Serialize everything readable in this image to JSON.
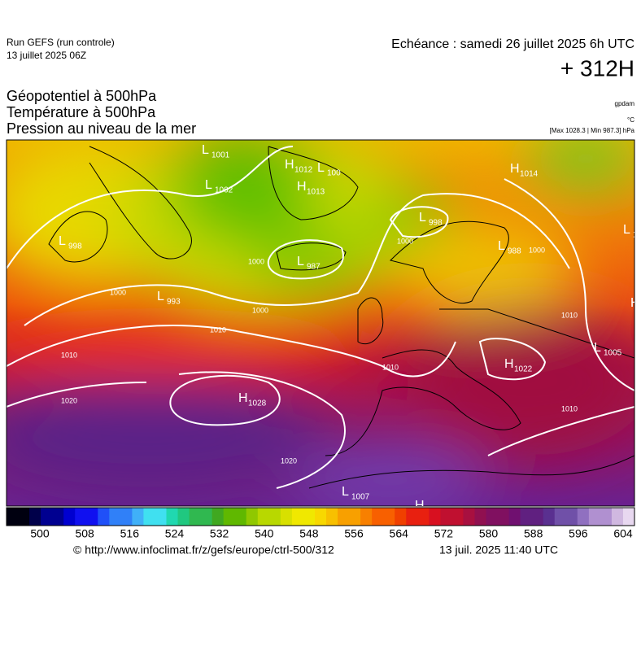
{
  "header": {
    "run": "Run GEFS (run controle)",
    "run_date": "13 juillet 2025 06Z",
    "valid": "Echéance : samedi 26 juillet 2025 6h UTC",
    "lead": "+ 312H"
  },
  "titles": [
    "Géopotentiel à 500hPa",
    "Température à 500hPa",
    "Pression au niveau de la mer"
  ],
  "units": {
    "geopotential": "gpdam",
    "temperature": "°C",
    "pressure": "[Max 1028.3 | Min 987.3] hPa"
  },
  "pressure_centers": [
    {
      "kind": "L",
      "value": 1001
    },
    {
      "kind": "L",
      "value": 1002
    },
    {
      "kind": "H",
      "value": 1012
    },
    {
      "kind": "L",
      "value": 100
    },
    {
      "kind": "H",
      "value": 1013
    },
    {
      "kind": "L",
      "value": 998
    },
    {
      "kind": "L",
      "value": 987
    },
    {
      "kind": "L",
      "value": 993
    },
    {
      "kind": "L",
      "value": 988
    },
    {
      "kind": "H",
      "value": 1014
    },
    {
      "kind": "L",
      "value": 10
    },
    {
      "kind": "H",
      "value": 1022
    },
    {
      "kind": "L",
      "value": 1005
    },
    {
      "kind": "H",
      "value": 1028
    },
    {
      "kind": "L",
      "value": 1007
    },
    {
      "kind": "L",
      "value": 998
    },
    {
      "kind": "H"
    },
    {
      "kind": "H"
    }
  ],
  "isobar_labels": [
    1000,
    1000,
    1000,
    1000,
    1010,
    1010,
    1020,
    1010,
    1020,
    1010,
    1010,
    1000
  ],
  "colorbar": {
    "ticks": [
      500,
      508,
      516,
      524,
      532,
      540,
      548,
      556,
      564,
      572,
      580,
      588,
      596,
      604
    ]
  },
  "footer": {
    "url": "© http://www.infoclimat.fr/z/gefs/europe/ctrl-500/312",
    "timestamp": "13 juil. 2025 11:40 UTC"
  }
}
